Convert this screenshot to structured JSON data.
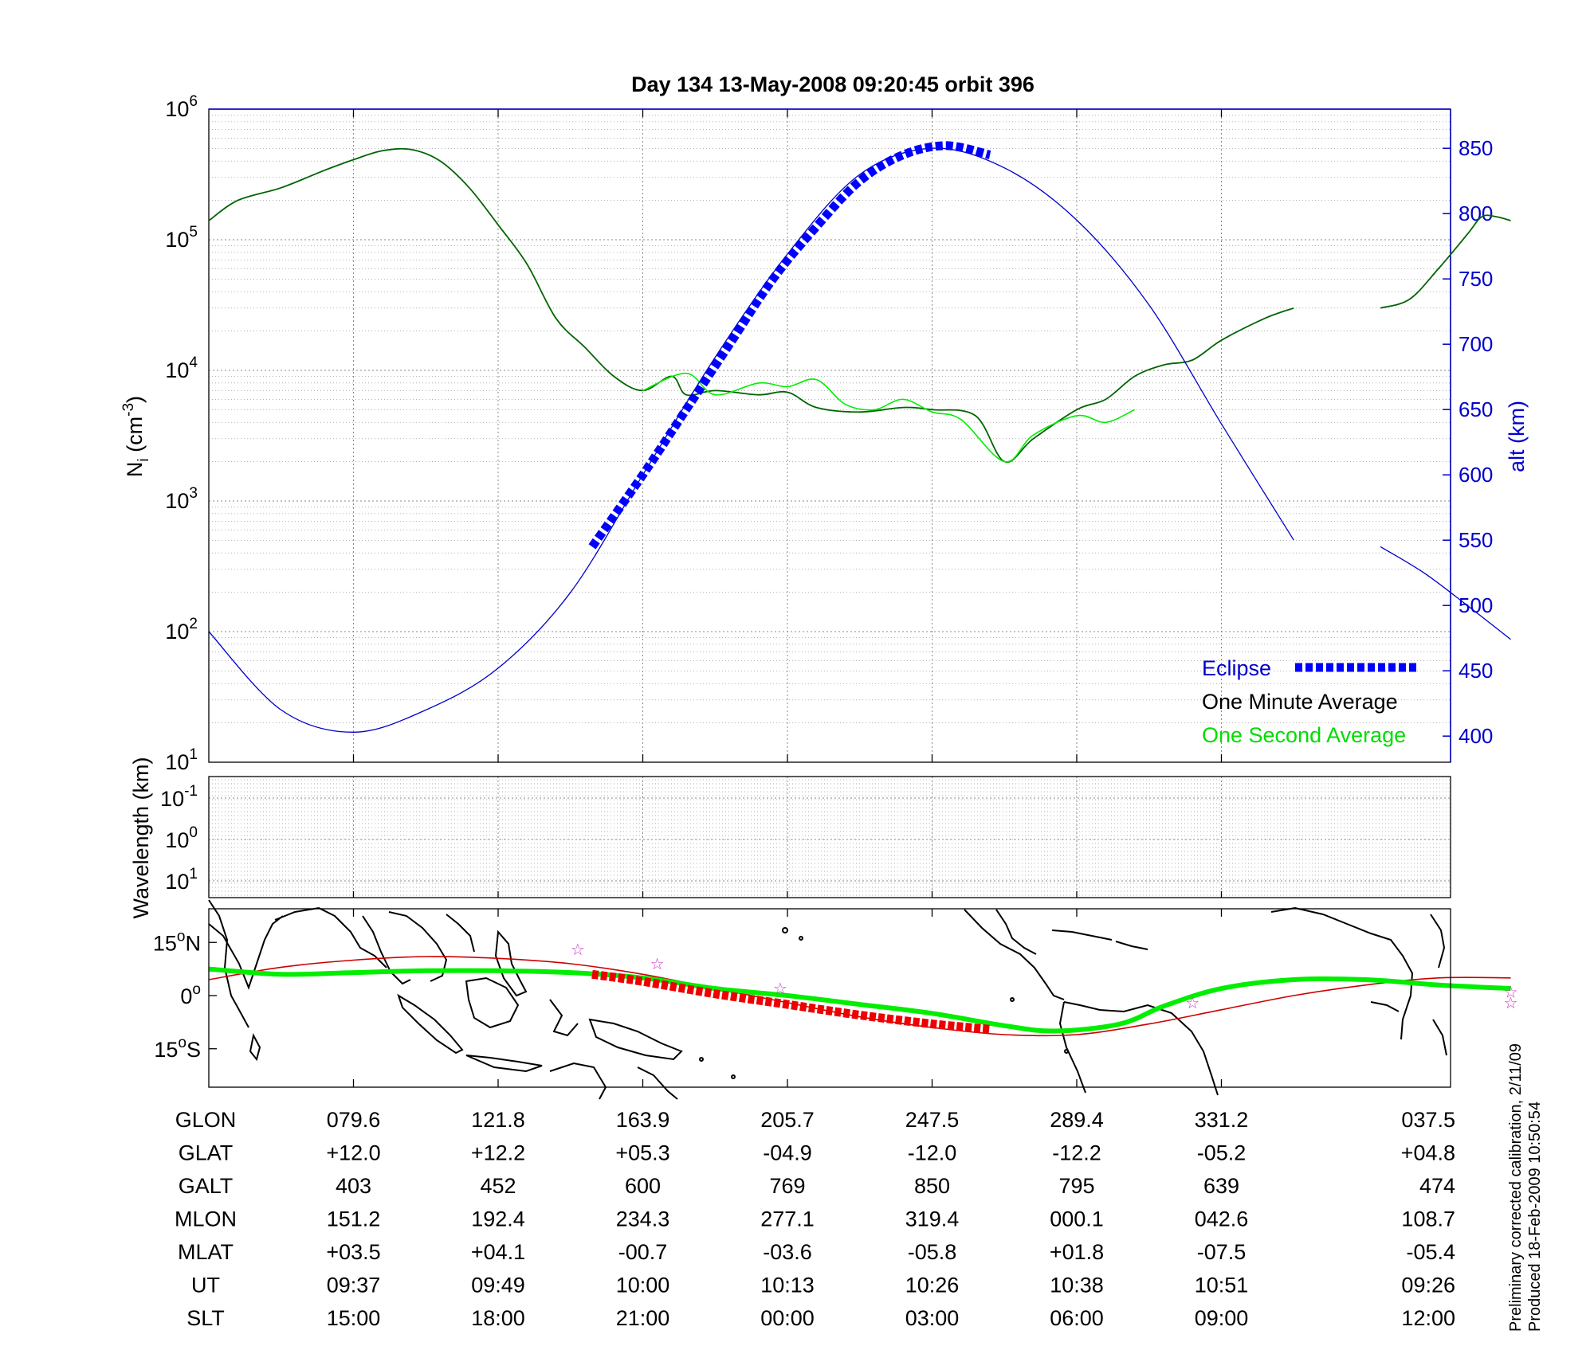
{
  "title": "Day 134  13-May-2008 09:20:45   orbit 396",
  "top_panel": {
    "ylabel": "N",
    "ylabel_sub": "i",
    "ylabel_unit": "(cm",
    "ylabel_unit_exp": "-3",
    "ylabel_unit_close": ")",
    "ylabel_right": "alt (km)",
    "left_ticks": [
      {
        "base": "10",
        "exp": "6"
      },
      {
        "base": "10",
        "exp": "5"
      },
      {
        "base": "10",
        "exp": "4"
      },
      {
        "base": "10",
        "exp": "3"
      },
      {
        "base": "10",
        "exp": "2"
      },
      {
        "base": "10",
        "exp": "1"
      }
    ],
    "right_ticks": [
      "850",
      "800",
      "750",
      "700",
      "650",
      "600",
      "550",
      "500",
      "450",
      "400"
    ]
  },
  "legend": {
    "eclipse": "Eclipse",
    "minute": "One Minute Average",
    "second": "One Second Average"
  },
  "middle_panel": {
    "ylabel": "Wavelength (km)",
    "ticks": [
      {
        "base": "10",
        "exp": "-1"
      },
      {
        "base": "10",
        "exp": "0"
      },
      {
        "base": "10",
        "exp": "1"
      }
    ]
  },
  "map_panel": {
    "lat_ticks": [
      {
        "num": "15",
        "deg": "o",
        "hemi": "N"
      },
      {
        "num": "0",
        "deg": "o",
        "hemi": ""
      },
      {
        "num": "15",
        "deg": "o",
        "hemi": "S"
      }
    ]
  },
  "table": {
    "row_labels": [
      "GLON",
      "GLAT",
      "GALT",
      "MLON",
      "MLAT",
      "UT",
      "SLT"
    ],
    "columns": [
      [
        "079.6",
        "+12.0",
        "403",
        "151.2",
        "+03.5",
        "09:37",
        "15:00"
      ],
      [
        "121.8",
        "+12.2",
        "452",
        "192.4",
        "+04.1",
        "09:49",
        "18:00"
      ],
      [
        "163.9",
        "+05.3",
        "600",
        "234.3",
        "-00.7",
        "10:00",
        "21:00"
      ],
      [
        "205.7",
        "-04.9",
        "769",
        "277.1",
        "-03.6",
        "10:13",
        "00:00"
      ],
      [
        "247.5",
        "-12.0",
        "850",
        "319.4",
        "-05.8",
        "10:26",
        "03:00"
      ],
      [
        "289.4",
        "-12.2",
        "795",
        "000.1",
        "+01.8",
        "10:38",
        "06:00"
      ],
      [
        "331.2",
        "-05.2",
        "639",
        "042.6",
        "-07.5",
        "10:51",
        "09:00"
      ],
      [
        "037.5",
        "+04.8",
        "474",
        "108.7",
        "-05.4",
        "09:26",
        "12:00"
      ]
    ]
  },
  "footer": {
    "line1": "Preliminary corrected calibration, 2/11/09",
    "line2": "Produced 18-Feb-2009 10:50:54"
  },
  "colors": {
    "altitude": "#0000cc",
    "eclipse": "#0000ff",
    "minute_avg": "#006400",
    "second_avg": "#00ee00",
    "ground_track": "#00ee00",
    "magnetic_equator": "#cc0000",
    "map_eclipse": "#ee0000",
    "stars": "#cc33cc"
  },
  "chart_data": {
    "type": "line",
    "x_sample_index": [
      0,
      1,
      2,
      3,
      4,
      5,
      6,
      7,
      8
    ],
    "x_labels_glon": [
      "",
      "079.6",
      "121.8",
      "163.9",
      "205.7",
      "247.5",
      "289.4",
      "331.2",
      "037.5"
    ],
    "y_left_scale": "log",
    "ylim_left": [
      10,
      1000000
    ],
    "ylim_right": [
      380,
      880
    ],
    "grid": true,
    "legend_position": "bottom-right",
    "series": [
      {
        "name": "One Minute Average",
        "axis": "left",
        "x": [
          0,
          0.2,
          0.5,
          0.8,
          1.0,
          1.2,
          1.4,
          1.6,
          1.8,
          2.0,
          2.2,
          2.4,
          2.6,
          2.8,
          3.0,
          3.2,
          3.3,
          3.5,
          3.8,
          4.0,
          4.2,
          4.5,
          4.8,
          5.0,
          5.3,
          5.5,
          5.7,
          6.0,
          6.2,
          6.4,
          6.6,
          6.8,
          7.0,
          7.3,
          7.5
        ],
        "y": [
          140000,
          200000,
          250000,
          340000,
          410000,
          480000,
          490000,
          400000,
          250000,
          130000,
          65000,
          25000,
          15000,
          9000,
          7000,
          9000,
          6500,
          7000,
          6500,
          6800,
          5200,
          4800,
          5200,
          5000,
          4500,
          2000,
          3000,
          5000,
          6000,
          9000,
          11000,
          12000,
          17000,
          25000,
          30000
        ]
      },
      {
        "name": "One Minute Average (tail)",
        "axis": "left",
        "x": [
          8.1,
          8.3,
          8.5,
          8.7,
          8.8,
          8.9,
          9.0
        ],
        "y": [
          30000,
          35000,
          60000,
          110000,
          150000,
          150000,
          140000
        ]
      },
      {
        "name": "One Second Average",
        "axis": "left",
        "x": [
          3.0,
          3.3,
          3.5,
          3.8,
          4.0,
          4.2,
          4.4,
          4.6,
          4.8,
          5.0,
          5.2,
          5.5,
          5.7,
          6.0,
          6.2,
          6.4
        ],
        "y": [
          7000,
          9500,
          6500,
          8000,
          7500,
          8500,
          5500,
          5000,
          6000,
          4800,
          4200,
          2000,
          3200,
          4500,
          4000,
          5000
        ]
      },
      {
        "name": "alt",
        "axis": "right",
        "x": [
          0,
          0.5,
          1.0,
          1.5,
          2.0,
          2.5,
          3.0,
          3.5,
          4.0,
          4.5,
          5.0,
          5.5,
          6.0,
          6.5,
          7.0,
          7.5
        ],
        "y": [
          480,
          420,
          403,
          420,
          452,
          510,
          600,
          690,
          769,
          830,
          850,
          835,
          795,
          730,
          639,
          550
        ]
      },
      {
        "name": "alt (tail)",
        "axis": "right",
        "x": [
          8.1,
          8.4,
          8.7,
          9.0
        ],
        "y": [
          545,
          525,
          500,
          474
        ]
      },
      {
        "name": "Eclipse",
        "axis": "right",
        "x": [
          2.65,
          3.0,
          3.3,
          3.6,
          3.9,
          4.2,
          4.5,
          4.8,
          5.1,
          5.4
        ],
        "y": [
          545,
          600,
          650,
          700,
          750,
          790,
          825,
          845,
          852,
          845
        ]
      }
    ]
  }
}
